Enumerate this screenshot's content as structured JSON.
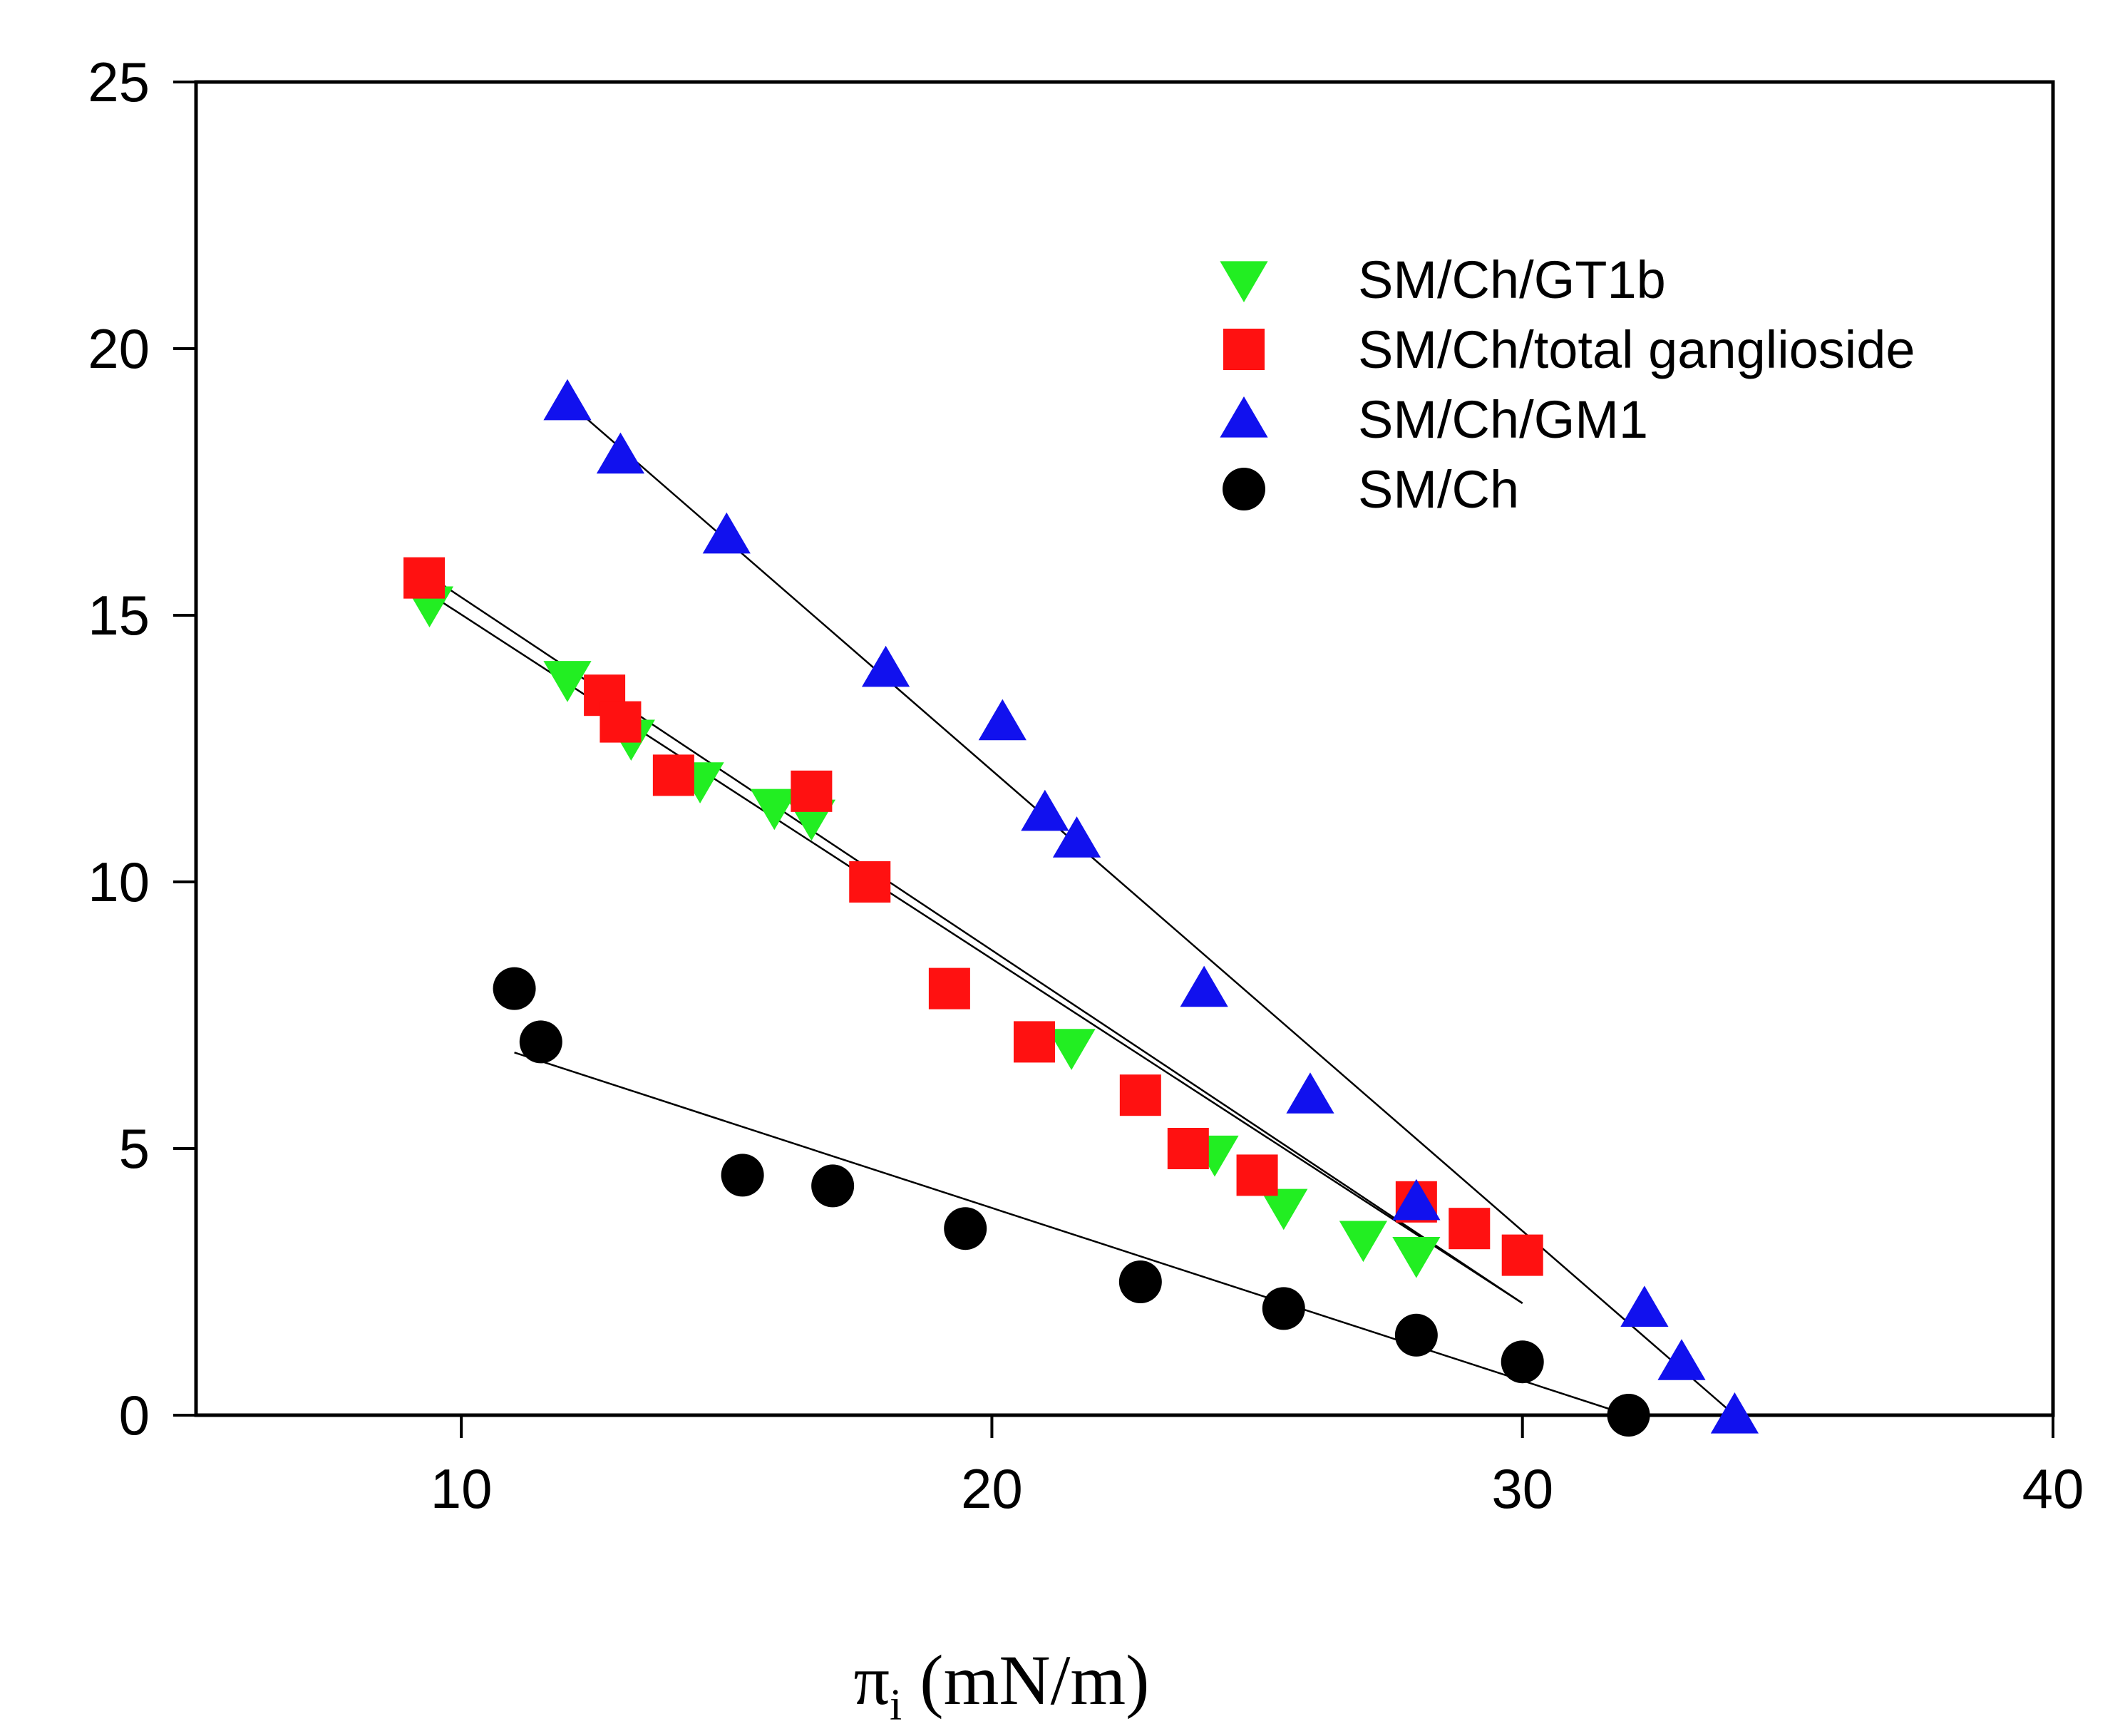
{
  "chart_data": {
    "type": "scatter",
    "title": "",
    "xlabel": {
      "symbol": "π",
      "subscript": "i",
      "units": " (mN/m)"
    },
    "ylabel": "",
    "xlim": [
      5,
      40
    ],
    "ylim": [
      0,
      25
    ],
    "xticks": [
      10,
      20,
      30,
      40
    ],
    "yticks": [
      0,
      5,
      10,
      15,
      20,
      25
    ],
    "grid": false,
    "legend_position": "top-right",
    "series": [
      {
        "name": "SM/Ch/GT1b",
        "marker": "triangle-down",
        "color": "#22ee22",
        "x": [
          9.4,
          12.0,
          13.2,
          14.5,
          15.9,
          16.6,
          21.5,
          24.2,
          25.5,
          27.0,
          28.0
        ],
        "y": [
          15.2,
          13.8,
          12.7,
          11.9,
          11.4,
          11.2,
          6.9,
          4.9,
          3.9,
          3.3,
          3.0
        ],
        "fit": {
          "x": [
            9.4,
            30.0
          ],
          "y": [
            15.4,
            2.1
          ]
        }
      },
      {
        "name": "SM/Ch/total ganglioside",
        "marker": "square",
        "color": "#ff1111",
        "x": [
          9.3,
          12.7,
          13.0,
          14.0,
          16.6,
          17.7,
          19.2,
          20.8,
          22.8,
          23.7,
          25.0,
          28.0,
          29.0,
          30.0
        ],
        "y": [
          15.7,
          13.5,
          13.0,
          12.0,
          11.7,
          10.0,
          8.0,
          7.0,
          6.0,
          5.0,
          4.5,
          4.0,
          3.5,
          3.0
        ],
        "fit": {
          "x": [
            9.3,
            30.0
          ],
          "y": [
            15.8,
            2.1
          ]
        }
      },
      {
        "name": "SM/Ch/GM1",
        "marker": "triangle-up",
        "color": "#1111ee",
        "x": [
          12.0,
          13.0,
          15.0,
          18.0,
          20.2,
          21.0,
          21.6,
          24.0,
          26.0,
          28.0,
          32.3,
          33.0,
          34.0
        ],
        "y": [
          19.0,
          18.0,
          16.5,
          14.0,
          13.0,
          11.3,
          10.8,
          8.0,
          6.0,
          4.0,
          2.0,
          1.0,
          0.0
        ],
        "fit": {
          "x": [
            12.0,
            34.0
          ],
          "y": [
            19.0,
            0.0
          ]
        }
      },
      {
        "name": "SM/Ch",
        "marker": "circle",
        "color": "#000000",
        "x": [
          11.0,
          11.5,
          15.3,
          17.0,
          19.5,
          22.8,
          25.5,
          28.0,
          30.0,
          32.0
        ],
        "y": [
          8.0,
          7.0,
          4.5,
          4.3,
          3.5,
          2.5,
          2.0,
          1.5,
          1.0,
          0.0
        ],
        "fit": {
          "x": [
            11.0,
            32.0
          ],
          "y": [
            6.8,
            0.0
          ]
        }
      }
    ]
  }
}
